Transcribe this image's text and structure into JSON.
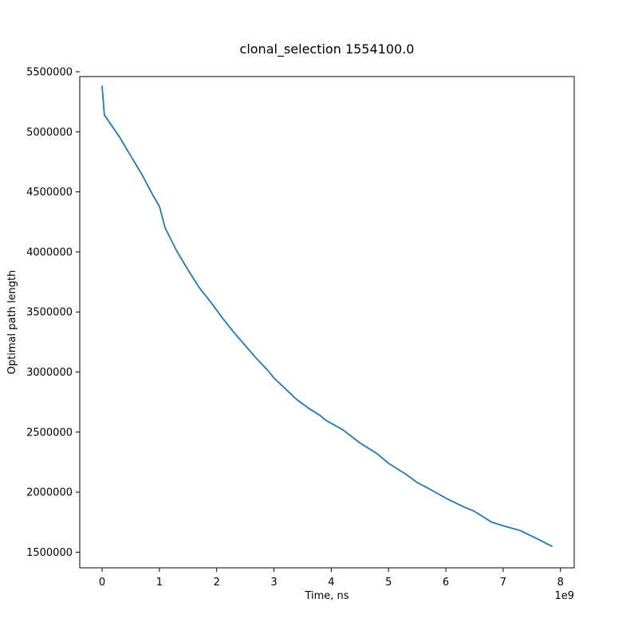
{
  "chart_data": {
    "type": "line",
    "title": "clonal_selection 1554100.0",
    "xlabel": "Time, ns",
    "ylabel": "Optimal path length",
    "x_offset_label": "1e9",
    "xlim": [
      -0.39,
      8.24
    ],
    "ylim": [
      1370000,
      5460000
    ],
    "x_ticks": [
      0,
      1,
      2,
      3,
      4,
      5,
      6,
      7,
      8
    ],
    "x_tick_labels": [
      "0",
      "1",
      "2",
      "3",
      "4",
      "5",
      "6",
      "7",
      "8"
    ],
    "y_ticks": [
      1500000,
      2000000,
      2500000,
      3000000,
      3500000,
      4000000,
      4500000,
      5000000,
      5500000
    ],
    "y_tick_labels": [
      "1500000",
      "2000000",
      "2500000",
      "3000000",
      "3500000",
      "4000000",
      "4500000",
      "5000000",
      "5500000"
    ],
    "grid": false,
    "series": [
      {
        "color": "#1f77b4",
        "x": [
          0.0,
          0.04,
          0.3,
          0.5,
          0.7,
          0.9,
          1.0,
          1.1,
          1.3,
          1.5,
          1.7,
          1.9,
          2.1,
          2.3,
          2.5,
          2.7,
          2.9,
          3.0,
          3.2,
          3.4,
          3.6,
          3.8,
          3.9,
          4.2,
          4.5,
          4.8,
          5.0,
          5.3,
          5.5,
          5.7,
          6.0,
          6.3,
          6.5,
          6.8,
          7.0,
          7.3,
          7.6,
          7.85
        ],
        "y": [
          5380000,
          5140000,
          4960000,
          4800000,
          4640000,
          4460000,
          4380000,
          4200000,
          4010000,
          3850000,
          3700000,
          3580000,
          3450000,
          3330000,
          3220000,
          3110000,
          3010000,
          2950000,
          2860000,
          2770000,
          2700000,
          2640000,
          2600000,
          2520000,
          2410000,
          2320000,
          2240000,
          2150000,
          2080000,
          2030000,
          1950000,
          1880000,
          1840000,
          1750000,
          1720000,
          1680000,
          1610000,
          1550000
        ]
      }
    ]
  }
}
